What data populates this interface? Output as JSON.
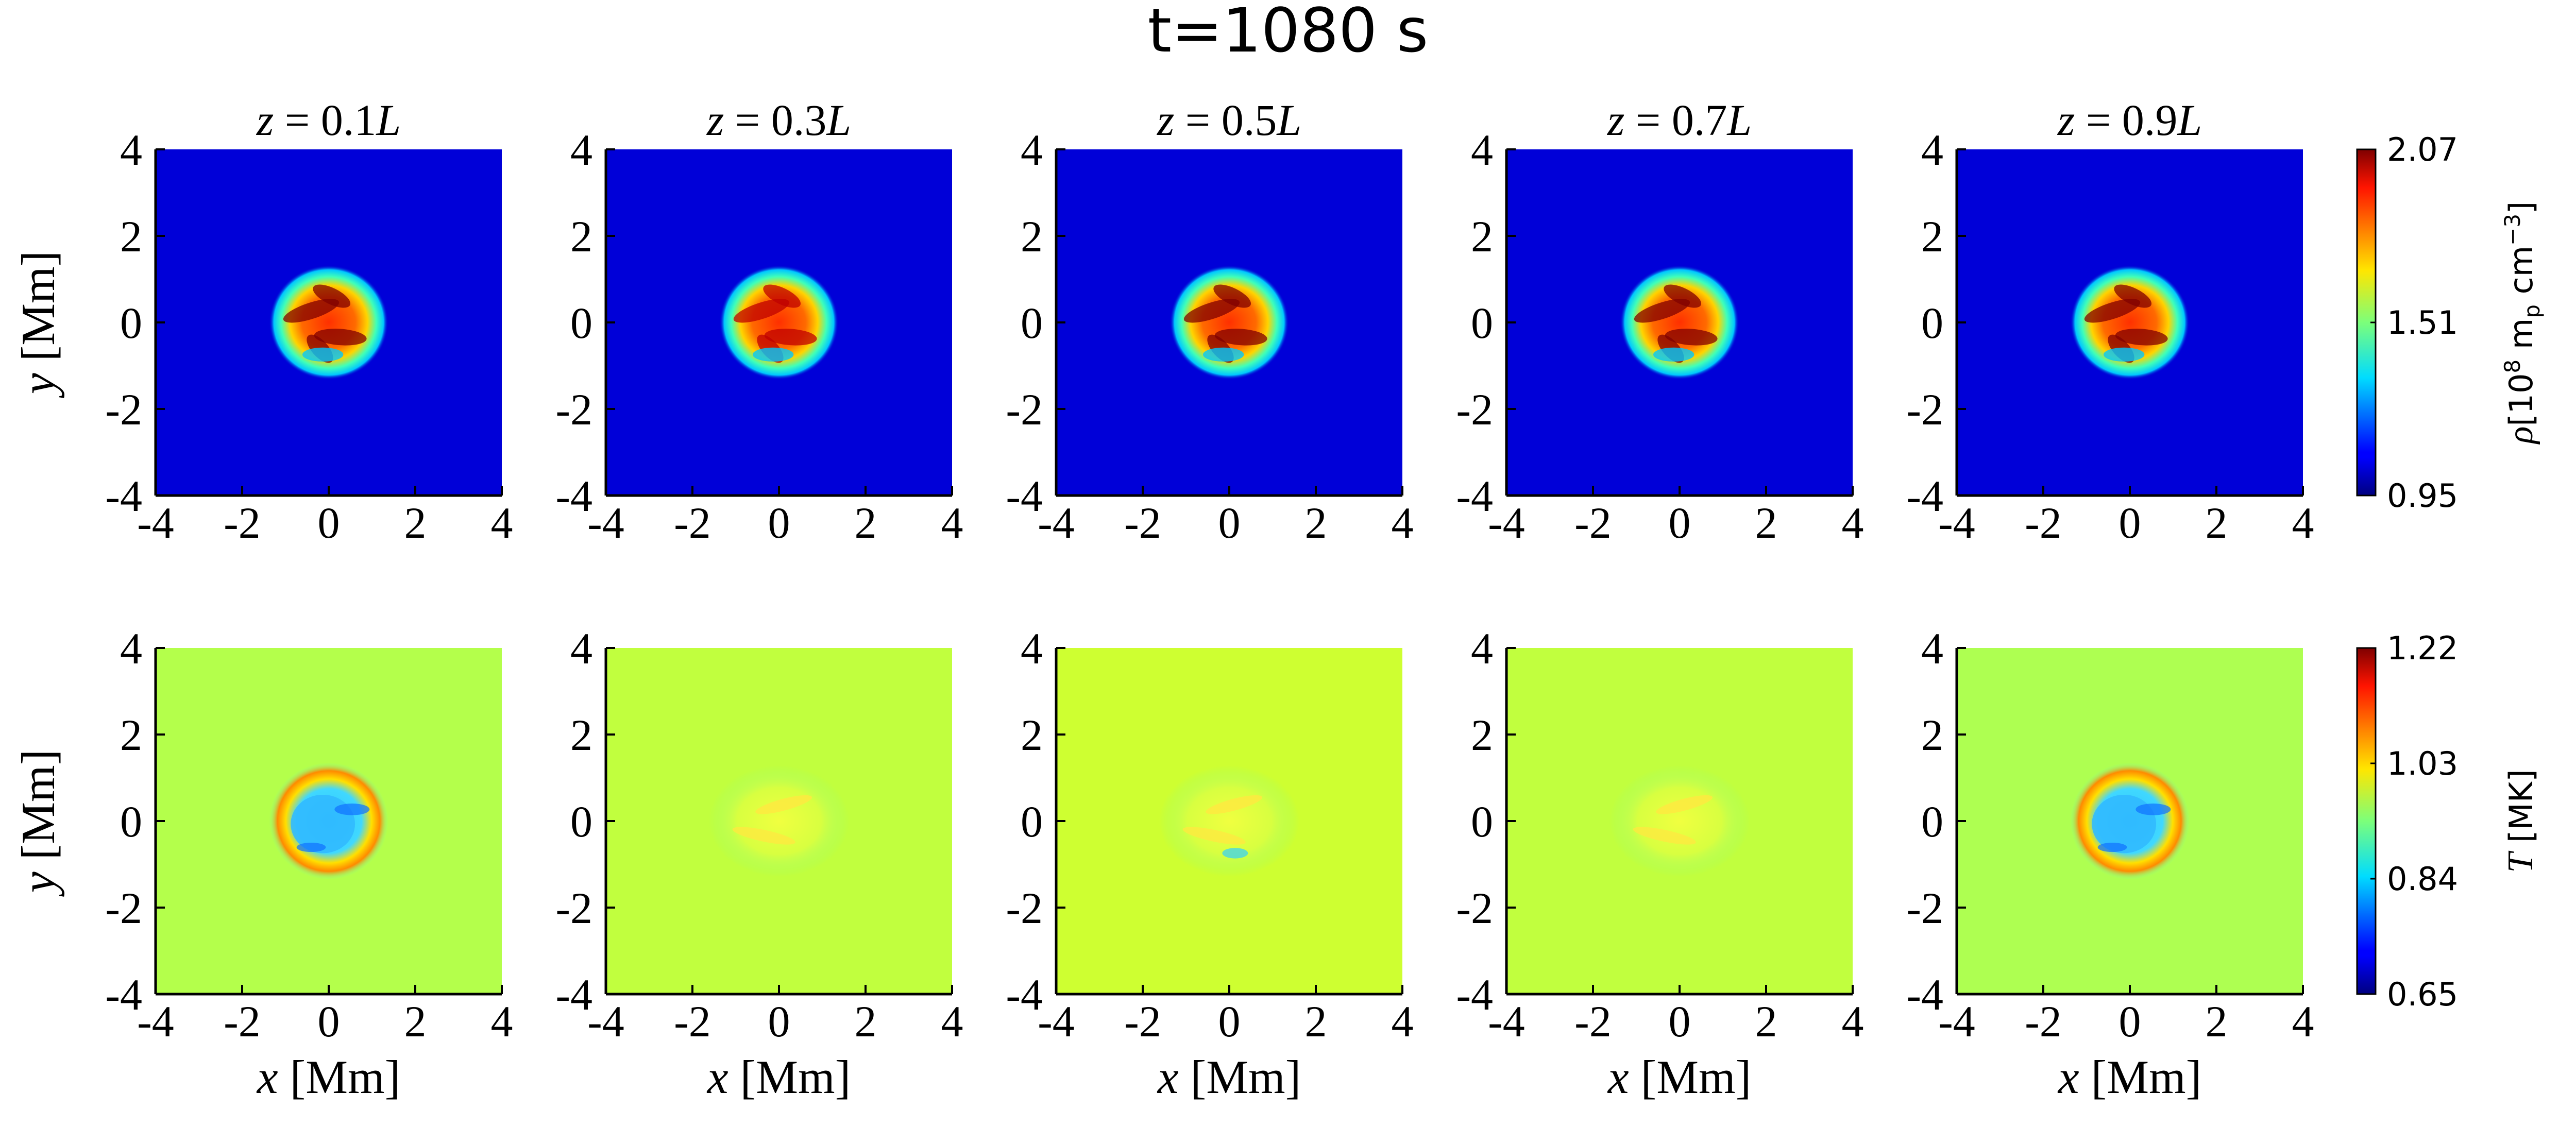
{
  "figure": {
    "title": "t=1080 s"
  },
  "colors": {
    "density_background": "#0000d0",
    "temperature_background": "#7cffa0",
    "axis": "#000000"
  },
  "colormap": "jet",
  "chart_data": {
    "type": "heatmap",
    "title": "t=1080 s",
    "panel_titles": [
      "z = 0.1L",
      "z = 0.3L",
      "z = 0.5L",
      "z = 0.7L",
      "z = 0.9L"
    ],
    "columns": [
      {
        "z_prefix": "z = ",
        "z_value": "0.1",
        "z_unit": "L"
      },
      {
        "z_prefix": "z = ",
        "z_value": "0.3",
        "z_unit": "L"
      },
      {
        "z_prefix": "z = ",
        "z_value": "0.5",
        "z_unit": "L"
      },
      {
        "z_prefix": "z = ",
        "z_value": "0.7",
        "z_unit": "L"
      },
      {
        "z_prefix": "z = ",
        "z_value": "0.9",
        "z_unit": "L"
      }
    ],
    "xlabel": "x [Mm]",
    "xlabel_var": "x",
    "xlabel_unit": " [Mm]",
    "ylabel": "y [Mm]",
    "ylabel_var": "y",
    "ylabel_unit": " [Mm]",
    "xlim": [
      -4,
      4
    ],
    "ylim": [
      -4,
      4
    ],
    "xticks": [
      "-4",
      "-2",
      "0",
      "2",
      "4"
    ],
    "yticks": [
      "-4",
      "-2",
      "0",
      "2",
      "4"
    ],
    "rows": [
      {
        "quantity": "density",
        "colorbar_label": "ρ[10⁸ mₚ cm⁻³]",
        "colorbar_label_parts": {
          "sym": "ρ",
          "open": "[10",
          "exp8": "8",
          "mp": " m",
          "p": "p",
          "cm": " cm",
          "exp": "−3",
          "close": "]"
        },
        "colorbar_range": [
          0.95,
          2.07
        ],
        "colorbar_ticks": [
          "0.95",
          "1.51",
          "2.07"
        ],
        "background_value": 0.95,
        "blob_peak_values": [
          2.07,
          2.0,
          2.07,
          2.07,
          2.07
        ]
      },
      {
        "quantity": "temperature",
        "colorbar_label": "T [MK]",
        "colorbar_label_parts": {
          "sym": "T",
          "unit": " [MK]"
        },
        "colorbar_range": [
          0.65,
          1.22
        ],
        "colorbar_ticks": [
          "0.65",
          "0.84",
          "1.03",
          "1.22"
        ],
        "background_values": [
          0.93,
          0.95,
          0.97,
          0.95,
          0.92
        ]
      }
    ],
    "grid": false
  }
}
